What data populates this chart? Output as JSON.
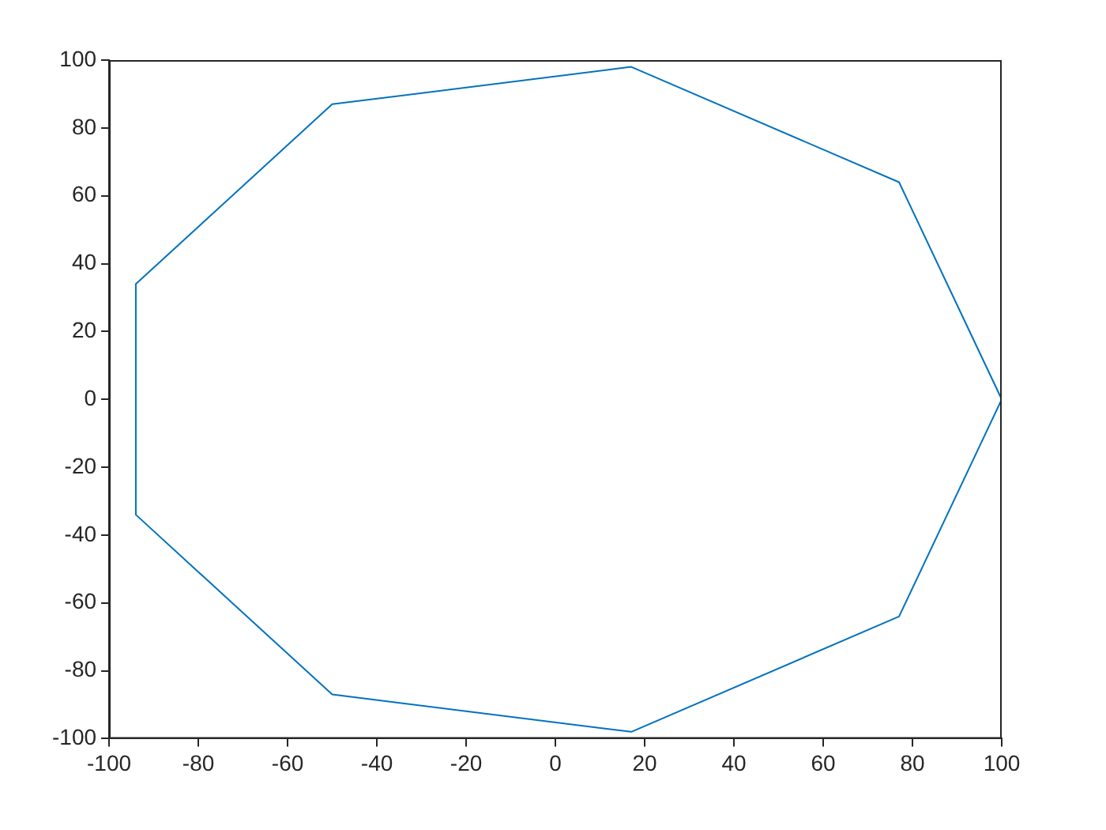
{
  "chart_data": {
    "type": "line",
    "series": [
      {
        "color": "#0072bd",
        "x": [
          -94,
          -50,
          17,
          77,
          100
        ],
        "values": [
          34,
          87,
          98,
          64,
          0
        ]
      },
      {
        "color": "#0072bd",
        "x": [
          -94,
          -94,
          -50,
          17,
          77,
          100
        ],
        "values": [
          34,
          -34,
          -87,
          -98,
          -64,
          0
        ]
      }
    ],
    "xlim": [
      -100,
      100
    ],
    "xticks": [
      -100,
      -80,
      -60,
      -40,
      -20,
      0,
      20,
      40,
      60,
      80,
      100
    ],
    "ylim": [
      -100,
      100
    ],
    "yticks": [
      -100,
      -80,
      -60,
      -40,
      -20,
      0,
      20,
      40,
      60,
      80,
      100
    ],
    "marker": "none",
    "line_style": "solid",
    "legend": false
  }
}
